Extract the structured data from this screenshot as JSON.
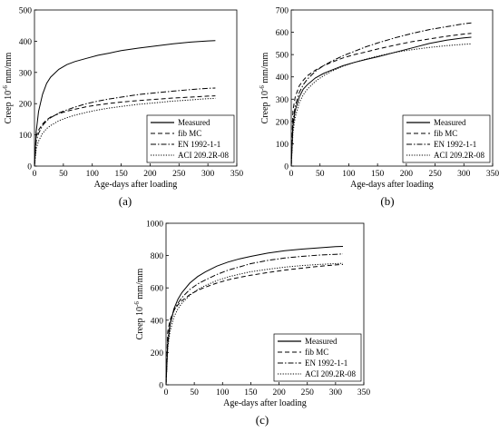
{
  "chart_data": [
    {
      "type": "line",
      "panel_label": "(a)",
      "xlabel": "Age-days after loading",
      "ylabel_main": "Creep 10",
      "ylabel_exp": "-6",
      "ylabel_tail": " mm/mm",
      "xlim": [
        0,
        350
      ],
      "ylim": [
        0,
        500
      ],
      "xticks": [
        0,
        50,
        100,
        150,
        200,
        250,
        300,
        350
      ],
      "yticks": [
        0,
        100,
        200,
        300,
        400,
        500
      ],
      "legend_position": "bottom-right",
      "series": [
        {
          "name": "Measured",
          "dash": "solid",
          "x": [
            0,
            3,
            7,
            14,
            21,
            28,
            42,
            56,
            70,
            90,
            110,
            130,
            150,
            180,
            210,
            240,
            270,
            300,
            313
          ],
          "y": [
            0,
            110,
            175,
            230,
            265,
            285,
            310,
            325,
            335,
            345,
            355,
            362,
            370,
            378,
            385,
            392,
            397,
            401,
            402
          ]
        },
        {
          "name": "fib MC",
          "dash": "dash",
          "x": [
            0,
            3,
            7,
            14,
            21,
            28,
            42,
            56,
            70,
            90,
            110,
            130,
            150,
            180,
            210,
            240,
            270,
            300,
            313
          ],
          "y": [
            0,
            95,
            115,
            135,
            148,
            157,
            168,
            176,
            182,
            190,
            196,
            201,
            205,
            210,
            214,
            218,
            221,
            224,
            225
          ]
        },
        {
          "name": "EN 1992-1-1",
          "dash": "dashdot",
          "x": [
            0,
            3,
            7,
            14,
            21,
            28,
            42,
            56,
            70,
            90,
            110,
            130,
            150,
            180,
            210,
            240,
            270,
            300,
            313
          ],
          "y": [
            0,
            80,
            105,
            130,
            145,
            155,
            170,
            180,
            189,
            200,
            208,
            215,
            221,
            229,
            235,
            240,
            245,
            249,
            250
          ]
        },
        {
          "name": "ACI 209.2R-08",
          "dash": "dot",
          "x": [
            0,
            3,
            7,
            14,
            21,
            28,
            42,
            56,
            70,
            90,
            110,
            130,
            150,
            180,
            210,
            240,
            270,
            300,
            313
          ],
          "y": [
            0,
            55,
            80,
            105,
            120,
            130,
            145,
            155,
            163,
            172,
            180,
            186,
            191,
            198,
            203,
            208,
            212,
            216,
            217
          ]
        }
      ]
    },
    {
      "type": "line",
      "panel_label": "(b)",
      "xlabel": "Age-days after loading",
      "ylabel_main": "Creep 10",
      "ylabel_exp": "-6",
      "ylabel_tail": " mm/mm",
      "xlim": [
        0,
        350
      ],
      "ylim": [
        0,
        700
      ],
      "xticks": [
        0,
        50,
        100,
        150,
        200,
        250,
        300,
        350
      ],
      "yticks": [
        0,
        100,
        200,
        300,
        400,
        500,
        600,
        700
      ],
      "legend_position": "bottom-right",
      "series": [
        {
          "name": "Measured",
          "dash": "solid",
          "x": [
            0,
            3,
            7,
            14,
            21,
            28,
            42,
            56,
            70,
            90,
            110,
            130,
            150,
            180,
            210,
            240,
            270,
            300,
            313
          ],
          "y": [
            0,
            180,
            250,
            310,
            345,
            365,
            395,
            415,
            430,
            450,
            465,
            478,
            490,
            510,
            530,
            550,
            565,
            575,
            578
          ]
        },
        {
          "name": "fib MC",
          "dash": "dash",
          "x": [
            0,
            3,
            7,
            14,
            21,
            28,
            42,
            56,
            70,
            90,
            110,
            130,
            150,
            180,
            210,
            240,
            270,
            300,
            313
          ],
          "y": [
            0,
            250,
            310,
            360,
            385,
            405,
            430,
            450,
            465,
            485,
            500,
            512,
            525,
            542,
            558,
            570,
            582,
            592,
            595
          ]
        },
        {
          "name": "EN 1992-1-1",
          "dash": "dashdot",
          "x": [
            0,
            3,
            7,
            14,
            21,
            28,
            42,
            56,
            70,
            90,
            110,
            130,
            150,
            180,
            210,
            240,
            270,
            300,
            313
          ],
          "y": [
            0,
            200,
            270,
            330,
            365,
            390,
            425,
            450,
            470,
            495,
            515,
            535,
            552,
            575,
            595,
            612,
            625,
            638,
            642
          ]
        },
        {
          "name": "ACI 209.2R-08",
          "dash": "dot",
          "x": [
            0,
            3,
            7,
            14,
            21,
            28,
            42,
            56,
            70,
            90,
            110,
            130,
            150,
            180,
            210,
            240,
            270,
            300,
            313
          ],
          "y": [
            0,
            150,
            220,
            285,
            320,
            345,
            380,
            405,
            425,
            448,
            465,
            480,
            493,
            510,
            522,
            532,
            540,
            546,
            548
          ]
        }
      ]
    },
    {
      "type": "line",
      "panel_label": "(c)",
      "xlabel": "Age-days after loading",
      "ylabel_main": "Creep 10",
      "ylabel_exp": "-6",
      "ylabel_tail": " mm/mm",
      "xlim": [
        0,
        350
      ],
      "ylim": [
        0,
        1000
      ],
      "xticks": [
        0,
        50,
        100,
        150,
        200,
        250,
        300,
        350
      ],
      "yticks": [
        0,
        200,
        400,
        600,
        800,
        1000
      ],
      "legend_position": "bottom-right",
      "series": [
        {
          "name": "Measured",
          "dash": "solid",
          "x": [
            0,
            3,
            7,
            14,
            21,
            28,
            42,
            56,
            70,
            90,
            110,
            130,
            150,
            180,
            210,
            240,
            270,
            300,
            313
          ],
          "y": [
            0,
            250,
            370,
            470,
            530,
            570,
            630,
            670,
            700,
            735,
            760,
            780,
            795,
            815,
            830,
            840,
            848,
            855,
            857
          ]
        },
        {
          "name": "fib MC",
          "dash": "dash",
          "x": [
            0,
            3,
            7,
            14,
            21,
            28,
            42,
            56,
            70,
            90,
            110,
            130,
            150,
            180,
            210,
            240,
            270,
            300,
            313
          ],
          "y": [
            0,
            330,
            400,
            460,
            495,
            520,
            558,
            585,
            605,
            630,
            650,
            665,
            678,
            695,
            710,
            722,
            733,
            742,
            745
          ]
        },
        {
          "name": "EN 1992-1-1",
          "dash": "dashdot",
          "x": [
            0,
            3,
            7,
            14,
            21,
            28,
            42,
            56,
            70,
            90,
            110,
            130,
            150,
            180,
            210,
            240,
            270,
            300,
            313
          ],
          "y": [
            0,
            280,
            380,
            460,
            505,
            540,
            590,
            625,
            650,
            683,
            710,
            730,
            750,
            770,
            785,
            795,
            803,
            808,
            810
          ]
        },
        {
          "name": "ACI 209.2R-08",
          "dash": "dot",
          "x": [
            0,
            3,
            7,
            14,
            21,
            28,
            42,
            56,
            70,
            90,
            110,
            130,
            150,
            180,
            210,
            240,
            270,
            300,
            313
          ],
          "y": [
            0,
            230,
            330,
            420,
            470,
            505,
            555,
            590,
            615,
            645,
            668,
            685,
            700,
            715,
            728,
            738,
            745,
            750,
            752
          ]
        }
      ]
    }
  ]
}
